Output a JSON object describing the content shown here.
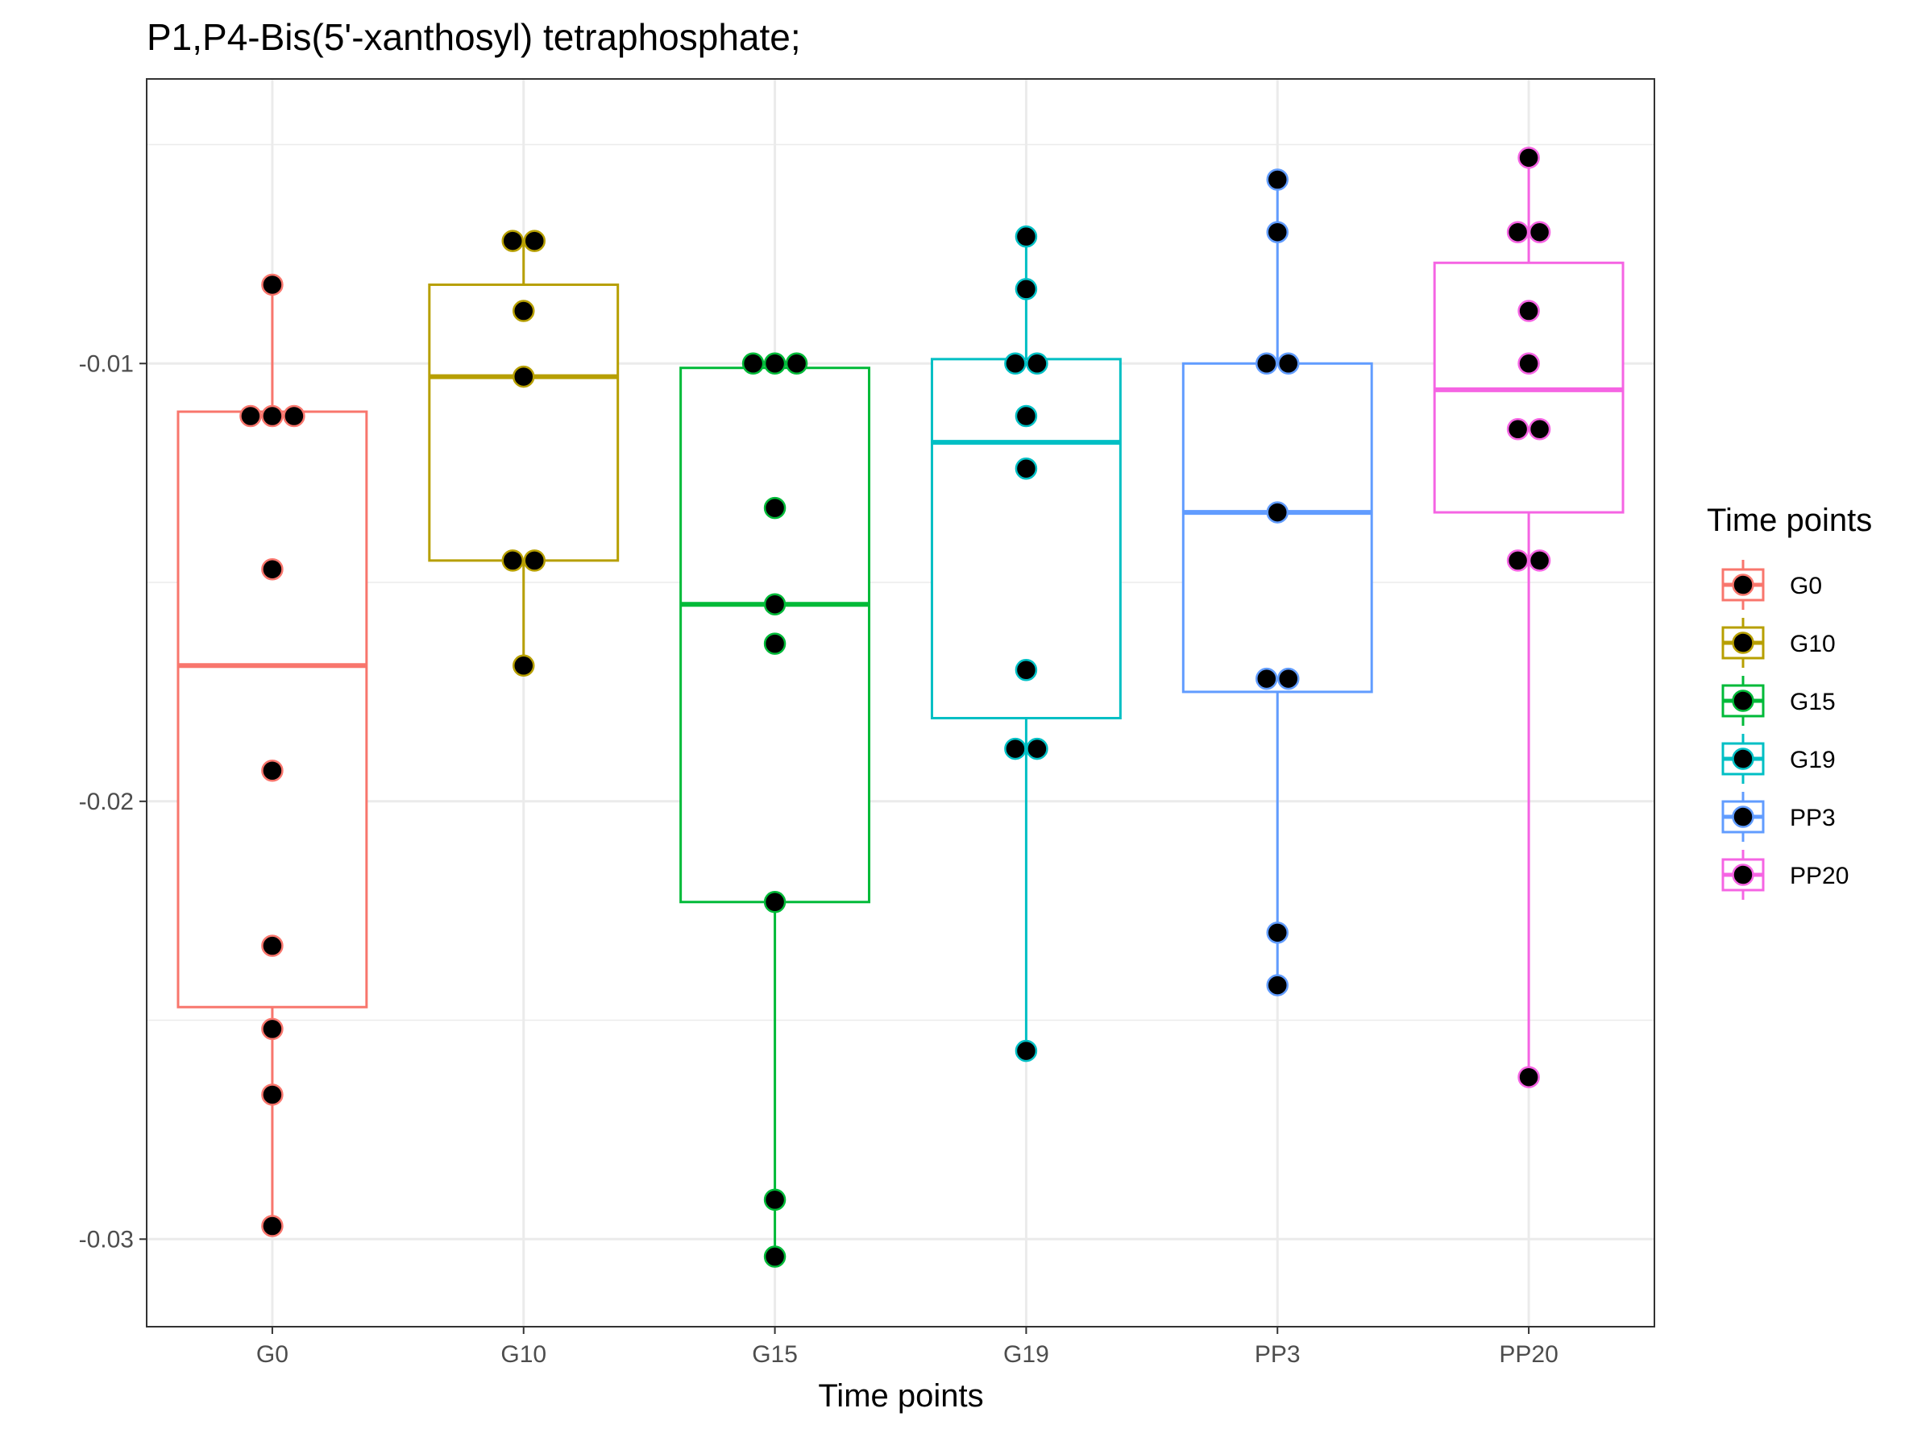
{
  "chart_data": {
    "type": "box",
    "title": "P1,P4-Bis(5'-xanthosyl) tetraphosphate;",
    "xlabel": "Time points",
    "ylabel": "",
    "categories": [
      "G0",
      "G10",
      "G15",
      "G19",
      "PP3",
      "PP20"
    ],
    "ylim": [
      -0.032,
      -0.0035
    ],
    "y_ticks": [
      -0.03,
      -0.02,
      -0.01
    ],
    "y_tick_labels": [
      "-0.03",
      "-0.02",
      "-0.01"
    ],
    "grid": true,
    "legend": {
      "title": "Time points",
      "position": "right",
      "entries": [
        "G0",
        "G10",
        "G15",
        "G19",
        "PP3",
        "PP20"
      ]
    },
    "colors": {
      "G0": "#F8766D",
      "G10": "#B79F00",
      "G15": "#00BA38",
      "G19": "#00BFC4",
      "PP3": "#619CFF",
      "PP20": "#F564E3"
    },
    "boxes": [
      {
        "category": "G0",
        "min": -0.0297,
        "q1": -0.0247,
        "median": -0.0169,
        "q3": -0.0111,
        "max": -0.0082
      },
      {
        "category": "G10",
        "min": -0.0169,
        "q1": -0.0145,
        "median": -0.0103,
        "q3": -0.0082,
        "max": -0.0072
      },
      {
        "category": "G15",
        "min": -0.0304,
        "q1": -0.0223,
        "median": -0.0155,
        "q3": -0.0101,
        "max": -0.01
      },
      {
        "category": "G19",
        "min": -0.0257,
        "q1": -0.0181,
        "median": -0.0118,
        "q3": -0.0099,
        "max": -0.0071
      },
      {
        "category": "PP3",
        "min": -0.0242,
        "q1": -0.0175,
        "median": -0.0134,
        "q3": -0.01,
        "max": -0.0058
      },
      {
        "category": "PP20",
        "min": -0.0263,
        "q1": -0.0134,
        "median": -0.0106,
        "q3": -0.0077,
        "max": -0.0053
      }
    ],
    "points": [
      {
        "category": "G0",
        "values": [
          -0.0082,
          -0.0112,
          -0.0112,
          -0.0112,
          -0.0147,
          -0.0193,
          -0.0233,
          -0.0252,
          -0.0267,
          -0.0297
        ]
      },
      {
        "category": "G10",
        "values": [
          -0.0072,
          -0.0072,
          -0.0088,
          -0.0103,
          -0.0145,
          -0.0145,
          -0.0169
        ]
      },
      {
        "category": "G15",
        "values": [
          -0.01,
          -0.01,
          -0.01,
          -0.0133,
          -0.0155,
          -0.0164,
          -0.0223,
          -0.0291,
          -0.0304
        ]
      },
      {
        "category": "G19",
        "values": [
          -0.0071,
          -0.0083,
          -0.01,
          -0.01,
          -0.0112,
          -0.0124,
          -0.017,
          -0.0188,
          -0.0188,
          -0.0257
        ]
      },
      {
        "category": "PP3",
        "values": [
          -0.0058,
          -0.007,
          -0.01,
          -0.01,
          -0.0134,
          -0.0172,
          -0.0172,
          -0.023,
          -0.0242
        ]
      },
      {
        "category": "PP20",
        "values": [
          -0.0053,
          -0.007,
          -0.007,
          -0.0088,
          -0.01,
          -0.0115,
          -0.0115,
          -0.0145,
          -0.0145,
          -0.0263
        ]
      }
    ]
  }
}
